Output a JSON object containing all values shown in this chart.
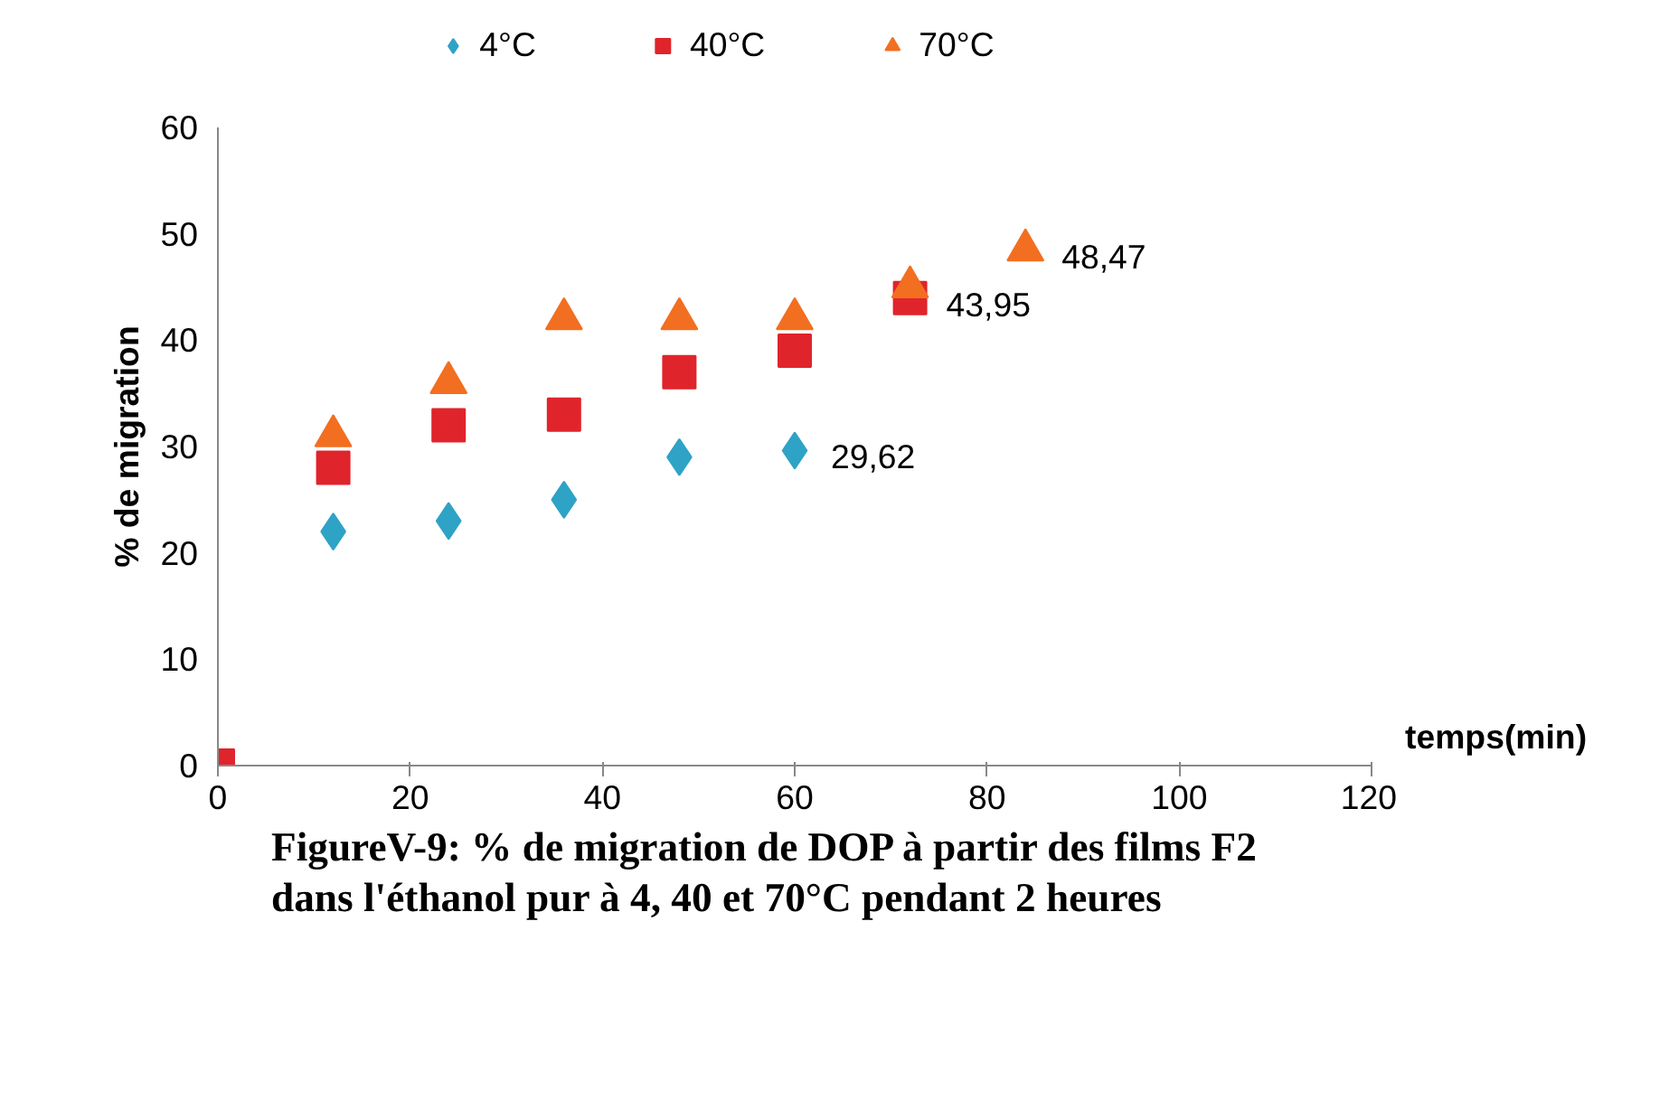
{
  "chart_data": {
    "type": "scatter",
    "title": "FigureV-9: % de migration de DOP à partir des films F2\ndans l'éthanol pur à 4, 40 et 70°C pendant 2 heures",
    "xlabel": "temps(min)",
    "ylabel": "% de migration",
    "x": [
      0,
      12,
      24,
      36,
      48,
      60,
      72,
      84
    ],
    "series": [
      {
        "name": "4°C",
        "color": "#2ea3c6",
        "marker": "diamond",
        "values": [
          null,
          22,
          23,
          25,
          29,
          29.62,
          null,
          null
        ],
        "value_labels": [
          null,
          null,
          null,
          null,
          null,
          "29,62",
          null,
          null
        ]
      },
      {
        "name": "40°C",
        "color": "#e0242b",
        "marker": "square",
        "values": [
          0,
          28,
          32,
          33,
          37,
          39,
          43.95,
          null
        ],
        "value_labels": [
          null,
          null,
          null,
          null,
          null,
          null,
          "43,95",
          null
        ]
      },
      {
        "name": "70°C",
        "color": "#f26f21",
        "marker": "triangle",
        "values": [
          null,
          31,
          36,
          42,
          42,
          42,
          45,
          48.47
        ],
        "value_labels": [
          null,
          null,
          null,
          null,
          null,
          null,
          null,
          "48,47"
        ]
      }
    ],
    "xlim": [
      0,
      120
    ],
    "xticks": [
      0,
      20,
      40,
      60,
      80,
      100,
      120
    ],
    "ylim": [
      0,
      60
    ],
    "yticks": [
      0,
      10,
      20,
      30,
      40,
      50,
      60
    ],
    "grid": false,
    "legend": "top"
  }
}
